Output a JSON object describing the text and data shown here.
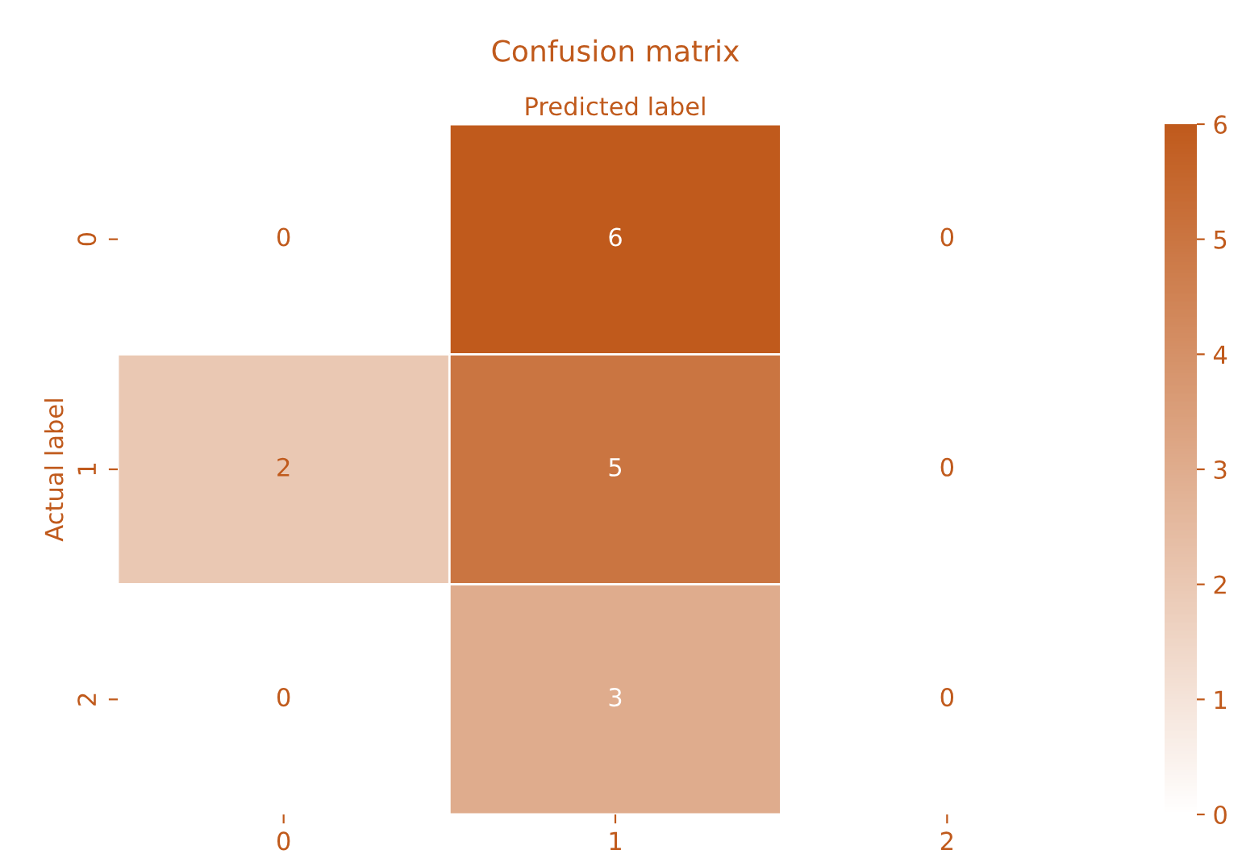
{
  "chart_data": {
    "type": "heatmap",
    "title": "Confusion matrix",
    "xlabel": "Predicted label",
    "ylabel": "Actual label",
    "categories": [
      "0",
      "1",
      "2"
    ],
    "y_categories": [
      "0",
      "1",
      "2"
    ],
    "cells": [
      [
        0,
        6,
        0
      ],
      [
        2,
        5,
        0
      ],
      [
        0,
        3,
        0
      ]
    ],
    "data_labels": true,
    "clim": [
      0,
      6
    ],
    "cticks": [
      0,
      1,
      2,
      3,
      4,
      5,
      6
    ],
    "color": "#c05a1c"
  }
}
